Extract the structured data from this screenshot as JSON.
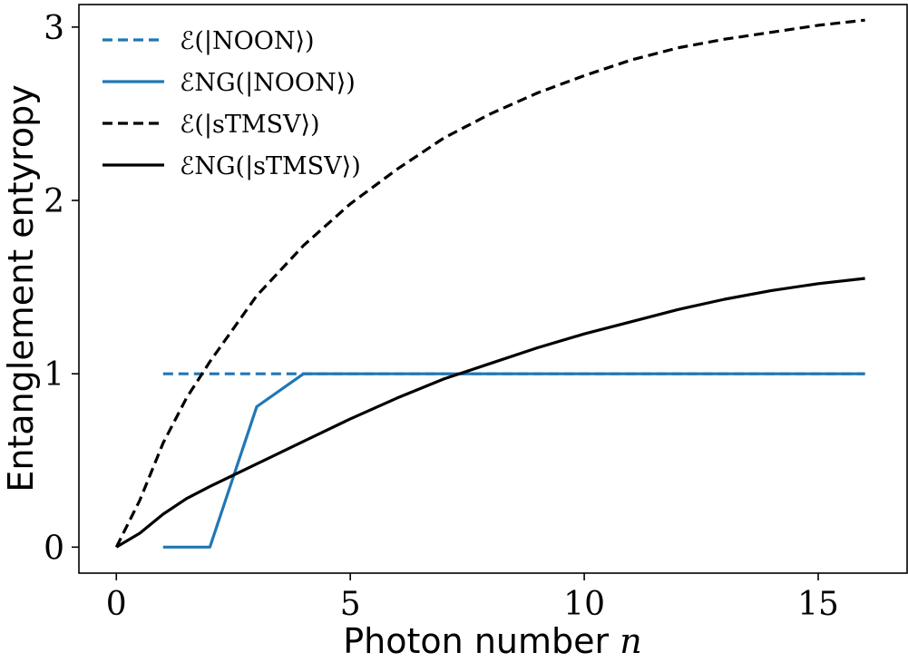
{
  "chart_data": {
    "type": "line",
    "xlabel": "Photon number",
    "xlabel_var": "n",
    "ylabel": "Entanglement entyropy",
    "xlim": [
      -0.8,
      16.9
    ],
    "ylim": [
      -0.15,
      3.13
    ],
    "xticks": [
      0,
      5,
      10,
      15
    ],
    "yticks": [
      0,
      1,
      2,
      3
    ],
    "grid": false,
    "legend_position": "top-left",
    "series": [
      {
        "name": "ℰ(|NOON⟩)",
        "color": "#1f77b4",
        "dash": "dashed",
        "x": [
          1,
          16
        ],
        "y": [
          1,
          1
        ]
      },
      {
        "name": "ℰNG(|NOON⟩)",
        "color": "#1f77b4",
        "dash": "solid",
        "x": [
          1,
          2,
          3,
          4,
          5,
          6,
          7,
          8,
          9,
          10,
          11,
          12,
          13,
          14,
          15,
          16
        ],
        "y": [
          0,
          0,
          0.81,
          1,
          1,
          1,
          1,
          1,
          1,
          1,
          1,
          1,
          1,
          1,
          1,
          1
        ]
      },
      {
        "name": "ℰ(|sTMSV⟩)",
        "color": "#000000",
        "dash": "dashed",
        "x": [
          0,
          0.5,
          1,
          1.5,
          2,
          3,
          4,
          5,
          6,
          7,
          8,
          9,
          10,
          11,
          12,
          13,
          14,
          15,
          16
        ],
        "y": [
          0,
          0.27,
          0.6,
          0.86,
          1.07,
          1.45,
          1.74,
          1.98,
          2.18,
          2.36,
          2.5,
          2.62,
          2.72,
          2.81,
          2.88,
          2.93,
          2.97,
          3.01,
          3.04
        ]
      },
      {
        "name": "ℰNG(|sTMSV⟩)",
        "color": "#000000",
        "dash": "solid",
        "x": [
          0,
          0.5,
          1,
          1.5,
          2,
          3,
          4,
          5,
          6,
          7,
          8,
          9,
          10,
          11,
          12,
          13,
          14,
          15,
          16
        ],
        "y": [
          0,
          0.08,
          0.19,
          0.28,
          0.35,
          0.48,
          0.61,
          0.74,
          0.86,
          0.97,
          1.06,
          1.15,
          1.23,
          1.3,
          1.37,
          1.43,
          1.48,
          1.52,
          1.55
        ]
      }
    ]
  }
}
